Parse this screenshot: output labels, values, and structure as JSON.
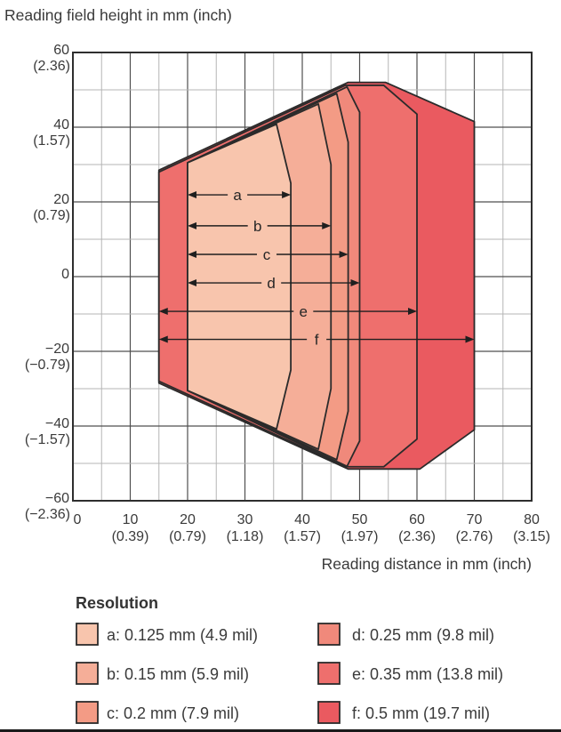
{
  "chart_data": {
    "type": "area",
    "ylabel": "Reading field height in mm (inch)",
    "xlabel": "Reading distance in mm (inch)",
    "xlim": [
      0,
      80
    ],
    "ylim": [
      -60,
      60
    ],
    "grid": {
      "x_minor_step": 5,
      "x_major_step": 10,
      "y_minor_step": 10,
      "y_major_step": 20,
      "minor_color": "#b5b5b5",
      "major_color": "#4f4f4f",
      "frame_color": "#2e2e2e"
    },
    "x_ticks": [
      {
        "v": 0,
        "mm": "0",
        "inch": "",
        "dx": 5
      },
      {
        "v": 10,
        "mm": "10",
        "inch": "(0.39)"
      },
      {
        "v": 20,
        "mm": "20",
        "inch": "(0.79)"
      },
      {
        "v": 30,
        "mm": "30",
        "inch": "(1.18)"
      },
      {
        "v": 40,
        "mm": "40",
        "inch": "(1.57)"
      },
      {
        "v": 50,
        "mm": "50",
        "inch": "(1.97)"
      },
      {
        "v": 60,
        "mm": "60",
        "inch": "(2.36)"
      },
      {
        "v": 70,
        "mm": "70",
        "inch": "(2.76)"
      },
      {
        "v": 80,
        "mm": "80",
        "inch": "(3.15)"
      }
    ],
    "y_ticks": [
      {
        "v": 60,
        "mm": "60",
        "inch": "(2.36)"
      },
      {
        "v": 40,
        "mm": "40",
        "inch": "(1.57)"
      },
      {
        "v": 20,
        "mm": "20",
        "inch": "(0.79)"
      },
      {
        "v": 0,
        "mm": "0",
        "inch": ""
      },
      {
        "v": -20,
        "mm": "−20",
        "inch": "(−0.79)"
      },
      {
        "v": -40,
        "mm": "−40",
        "inch": "(−1.57)"
      },
      {
        "v": -60,
        "mm": "−60",
        "inch": "(−2.36)"
      }
    ],
    "outline_color": "#2b2b2b",
    "arrow_color": "#1f1f1f",
    "series": [
      {
        "id": "f",
        "label": "f: 0.5 mm (19.7 mil)",
        "resolution_mm": 0.5,
        "mil": 19.7,
        "color": "#ea5a60",
        "vertices": [
          [
            15,
            28.5
          ],
          [
            48,
            52
          ],
          [
            54.5,
            52
          ],
          [
            70,
            41.5
          ],
          [
            70,
            -41
          ],
          [
            60.5,
            -51.5
          ],
          [
            48,
            -51.5
          ],
          [
            15,
            -28.5
          ]
        ]
      },
      {
        "id": "e",
        "label": "e: 0.35 mm (13.8 mil)",
        "resolution_mm": 0.35,
        "mil": 13.8,
        "color": "#ee6f6d",
        "vertices": [
          [
            15,
            28
          ],
          [
            47.5,
            51.2
          ],
          [
            54.2,
            51.2
          ],
          [
            60,
            43.5
          ],
          [
            60,
            -43.5
          ],
          [
            54.2,
            -50.9
          ],
          [
            47.6,
            -50.9
          ],
          [
            15,
            -28
          ]
        ]
      },
      {
        "id": "d",
        "label": "d: 0.25 mm (9.8 mil)",
        "resolution_mm": 0.25,
        "mil": 9.8,
        "color": "#f0897b",
        "vertices": [
          [
            20,
            30.5
          ],
          [
            47.8,
            50.8
          ],
          [
            50,
            44
          ],
          [
            50,
            -44
          ],
          [
            47.8,
            -50.8
          ],
          [
            20,
            -30.5
          ]
        ]
      },
      {
        "id": "c",
        "label": "c: 0.2 mm (7.9 mil)",
        "resolution_mm": 0.2,
        "mil": 7.9,
        "color": "#f39b85",
        "vertices": [
          [
            20,
            30.5
          ],
          [
            46,
            49
          ],
          [
            48,
            36
          ],
          [
            48,
            -36
          ],
          [
            46,
            -49
          ],
          [
            20,
            -30.5
          ]
        ]
      },
      {
        "id": "b",
        "label": "b: 0.15 mm (5.9 mil)",
        "resolution_mm": 0.15,
        "mil": 5.9,
        "color": "#f5ae98",
        "vertices": [
          [
            20,
            30.5
          ],
          [
            42.8,
            46.2
          ],
          [
            45,
            30
          ],
          [
            45,
            -30
          ],
          [
            42.8,
            -46.2
          ],
          [
            20,
            -30.5
          ]
        ]
      },
      {
        "id": "a",
        "label": "a: 0.125 mm (4.9 mil)",
        "resolution_mm": 0.125,
        "mil": 4.9,
        "color": "#f8c5ad",
        "vertices": [
          [
            20,
            30.5
          ],
          [
            35.5,
            40.8
          ],
          [
            38,
            25
          ],
          [
            38,
            -25
          ],
          [
            35.5,
            -40.8
          ],
          [
            20,
            -30.5
          ]
        ]
      }
    ],
    "arrows": [
      {
        "id": "a",
        "label": "a",
        "x1": 20,
        "x2": 38,
        "y": 21.9,
        "label_x": 28.7
      },
      {
        "id": "b",
        "label": "b",
        "x1": 20,
        "x2": 45,
        "y": 13.6,
        "label_x": 32.2
      },
      {
        "id": "c",
        "label": "c",
        "x1": 20,
        "x2": 48,
        "y": 5.95,
        "label_x": 33.8
      },
      {
        "id": "d",
        "label": "d",
        "x1": 20,
        "x2": 50,
        "y": -1.67,
        "label_x": 34.6
      },
      {
        "id": "e",
        "label": "e",
        "x1": 15,
        "x2": 60,
        "y": -9.29,
        "label_x": 40.2
      },
      {
        "id": "f",
        "label": "f",
        "x1": 15,
        "x2": 70,
        "y": -16.8,
        "label_x": 42.5
      }
    ],
    "legend": {
      "title": "Resolution",
      "items": [
        {
          "id": "a",
          "label": "a: 0.125 mm (4.9 mil)",
          "color": "#f8c5ad"
        },
        {
          "id": "b",
          "label": "b: 0.15 mm (5.9 mil)",
          "color": "#f5ae98"
        },
        {
          "id": "c",
          "label": "c: 0.2 mm (7.9 mil)",
          "color": "#f39b85"
        },
        {
          "id": "d",
          "label": "d: 0.25 mm (9.8 mil)",
          "color": "#f0897b"
        },
        {
          "id": "e",
          "label": "e: 0.35 mm (13.8 mil)",
          "color": "#ee6f6d"
        },
        {
          "id": "f",
          "label": "f: 0.5 mm (19.7 mil)",
          "color": "#ea5a60"
        }
      ]
    }
  }
}
